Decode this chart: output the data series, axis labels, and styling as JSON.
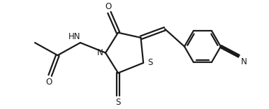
{
  "background": "#ffffff",
  "line_color": "#1a1a1a",
  "line_width": 1.6,
  "font_size": 8.5,
  "fig_width": 3.85,
  "fig_height": 1.56,
  "dpi": 100,
  "xlim": [
    0,
    10
  ],
  "ylim": [
    0,
    4.1
  ]
}
